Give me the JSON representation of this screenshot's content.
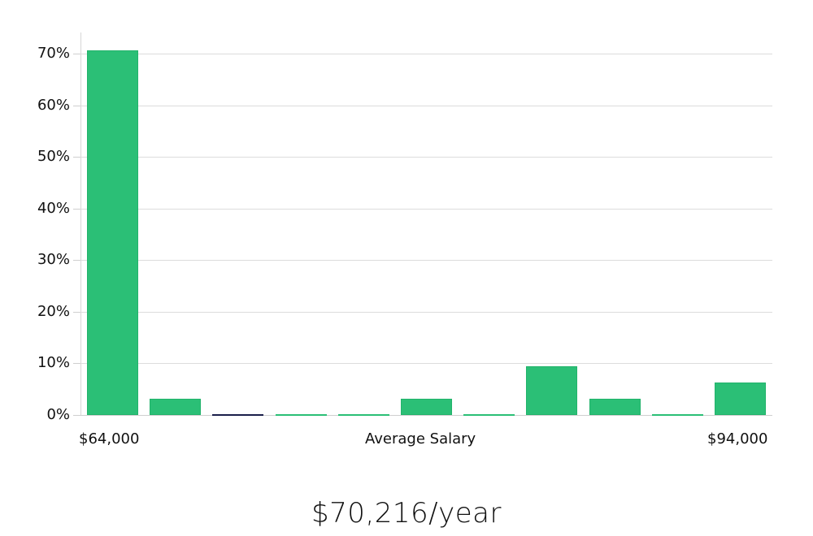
{
  "chart_data": {
    "type": "bar",
    "title": "",
    "xlabel": "Average Salary",
    "ylabel": "",
    "x_range_labels": {
      "min": "$64,000",
      "max": "$94,000"
    },
    "categories": [
      "bin1",
      "bin2",
      "bin3",
      "bin4",
      "bin5",
      "bin6",
      "bin7",
      "bin8",
      "bin9",
      "bin10",
      "bin11"
    ],
    "values": [
      70.6,
      3.1,
      0,
      0,
      0,
      3.1,
      0,
      9.4,
      3.1,
      0,
      6.3
    ],
    "value_unit": "%",
    "ylim": [
      0,
      74
    ],
    "yticks": [
      "0%",
      "10%",
      "20%",
      "30%",
      "40%",
      "50%",
      "60%",
      "70%"
    ],
    "grid": true,
    "bar_color": "#2bbf76"
  },
  "summary": {
    "average_salary": "$70,216/year"
  }
}
